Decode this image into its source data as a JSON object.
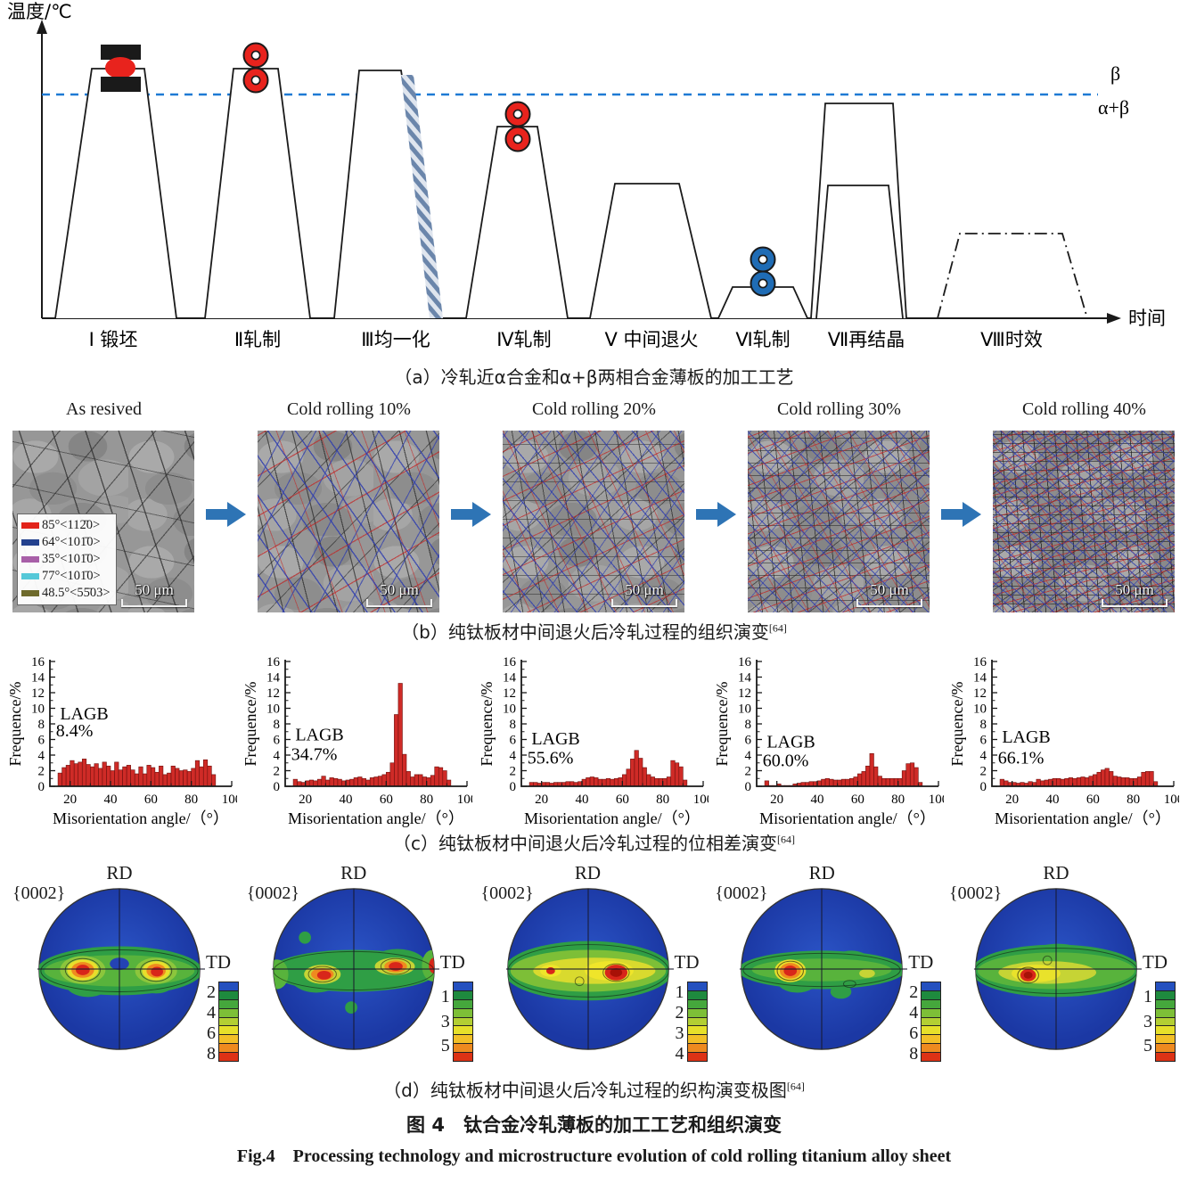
{
  "figure": {
    "title_cn": "图 4　钛合金冷轧薄板的加工工艺和组织演变",
    "title_en": "Fig.4　Processing technology and microstructure evolution of cold rolling titanium alloy sheet"
  },
  "captions": {
    "a": "（a）冷轧近α合金和α+β两相合金薄板的加工工艺",
    "b": "（b）纯钛板材中间退火后冷轧过程的组织演变",
    "c": "（c）纯钛板材中间退火后冷轧过程的位相差演变",
    "d": "（d）纯钛板材中间退火后冷轧过程的织构演变极图",
    "ref": "[64]"
  },
  "panel_a": {
    "y_axis_label": "温度/℃",
    "x_axis_label": "时间",
    "beta_label": "β",
    "alpha_beta_label": "α+β",
    "beta_transus_color": "#1e7ad4",
    "stages": [
      {
        "label": "Ⅰ 锻坯"
      },
      {
        "label": "Ⅱ轧制"
      },
      {
        "label": "Ⅲ均一化"
      },
      {
        "label": "Ⅳ轧制"
      },
      {
        "label": "Ⅴ 中间退火"
      },
      {
        "label": "Ⅵ轧制"
      },
      {
        "label": "Ⅶ再结晶"
      },
      {
        "label": "Ⅷ时效"
      }
    ]
  },
  "panel_b": {
    "titles": [
      "As resived",
      "Cold rolling 10%",
      "Cold rolling 20%",
      "Cold rolling 30%",
      "Cold rolling 40%"
    ],
    "scale_bar": "50 μm",
    "legend": [
      {
        "color": "#e2231a",
        "label": "85°<112̄0>"
      },
      {
        "color": "#23418e",
        "label": "64°<101̄0>"
      },
      {
        "color": "#a85fa8",
        "label": "35°<101̄0>"
      },
      {
        "color": "#55c8d8",
        "label": "77°<101̄0>"
      },
      {
        "color": "#6e6a2b",
        "label": "48.5°<55̄03>"
      }
    ]
  },
  "chart_data": [
    {
      "type": "bar",
      "title": "",
      "ylabel": "Frequence/%",
      "xlabel": "Misorientation angle/（°）",
      "ylim": [
        0,
        16
      ],
      "yticks": [
        0,
        2,
        4,
        6,
        8,
        10,
        12,
        14,
        16
      ],
      "xlim": [
        10,
        100
      ],
      "xticks": [
        20,
        40,
        60,
        80,
        100
      ],
      "bin_start": 14,
      "bin_width": 2,
      "annotation": "LAGB",
      "lagb": "8.4%",
      "ann_y": [
        8.6,
        6.4
      ],
      "bar_color": "#cf2b27",
      "grid": false,
      "values": [
        1.7,
        2.4,
        2.7,
        3.3,
        2.9,
        3.1,
        3.5,
        2.8,
        2.5,
        2.9,
        2.3,
        3.1,
        2.6,
        2.0,
        3.1,
        2.1,
        2.5,
        2.7,
        2.1,
        1.6,
        2.5,
        1.6,
        2.7,
        2.4,
        1.8,
        2.6,
        1.5,
        1.7,
        2.6,
        2.3,
        2.0,
        2.1,
        1.9,
        2.3,
        3.3,
        2.5,
        3.4,
        2.6,
        1.5
      ]
    },
    {
      "type": "bar",
      "title": "",
      "ylabel": "Frequence/%",
      "xlabel": "Misorientation angle/（°）",
      "ylim": [
        0,
        16
      ],
      "yticks": [
        0,
        2,
        4,
        6,
        8,
        10,
        12,
        14,
        16
      ],
      "xlim": [
        10,
        100
      ],
      "xticks": [
        20,
        40,
        60,
        80,
        100
      ],
      "bin_start": 14,
      "bin_width": 2,
      "annotation": "LAGB",
      "lagb": "34.7%",
      "ann_y": [
        5.9,
        3.4
      ],
      "bar_color": "#cf2b27",
      "grid": false,
      "values": [
        0.9,
        0.6,
        0.5,
        0.7,
        0.8,
        0.7,
        0.9,
        1.3,
        0.8,
        1.1,
        1.0,
        0.9,
        0.7,
        0.8,
        0.9,
        1.1,
        1.2,
        1.0,
        0.8,
        1.1,
        1.2,
        1.3,
        1.5,
        1.8,
        3.0,
        9.2,
        13.2,
        4.1,
        1.9,
        1.2,
        1.5,
        1.5,
        1.2,
        1.1,
        1.4,
        2.5,
        2.4,
        2.0,
        0.8
      ]
    },
    {
      "type": "bar",
      "title": "",
      "ylabel": "Frequence/%",
      "xlabel": "Misorientation angle/（°）",
      "ylim": [
        0,
        16
      ],
      "yticks": [
        0,
        2,
        4,
        6,
        8,
        10,
        12,
        14,
        16
      ],
      "xlim": [
        10,
        100
      ],
      "xticks": [
        20,
        40,
        60,
        80,
        100
      ],
      "bin_start": 14,
      "bin_width": 2,
      "annotation": "LAGB",
      "lagb": "55.6%",
      "ann_y": [
        5.4,
        2.9
      ],
      "bar_color": "#cf2b27",
      "grid": false,
      "values": [
        0.5,
        0.5,
        0.4,
        0.5,
        0.5,
        0.4,
        0.5,
        0.5,
        0.5,
        0.6,
        0.6,
        0.5,
        0.6,
        0.9,
        1.1,
        1.2,
        1.1,
        0.9,
        0.9,
        1.0,
        0.9,
        1.0,
        1.1,
        1.5,
        2.2,
        3.5,
        4.6,
        3.6,
        2.4,
        1.5,
        1.2,
        1.0,
        1.0,
        1.0,
        1.2,
        3.3,
        3.0,
        2.5,
        0.8
      ]
    },
    {
      "type": "bar",
      "title": "",
      "ylabel": "Frequence/%",
      "xlabel": "Misorientation angle/（°）",
      "ylim": [
        0,
        16
      ],
      "yticks": [
        0,
        2,
        4,
        6,
        8,
        10,
        12,
        14,
        16
      ],
      "xlim": [
        10,
        100
      ],
      "xticks": [
        20,
        40,
        60,
        80,
        100
      ],
      "bin_start": 14,
      "bin_width": 2,
      "annotation": "LAGB",
      "lagb": "60.0%",
      "ann_y": [
        5.0,
        2.6
      ],
      "bar_color": "#cf2b27",
      "grid": false,
      "values": [
        0.7,
        0.1,
        0.1,
        0.3,
        0.1,
        0.1,
        0.1,
        0.3,
        0.4,
        0.5,
        0.5,
        0.6,
        0.6,
        0.7,
        0.9,
        1.0,
        0.9,
        0.8,
        0.8,
        0.9,
        0.9,
        1.0,
        1.2,
        1.6,
        1.9,
        2.6,
        4.2,
        2.5,
        1.3,
        1.0,
        1.0,
        1.0,
        1.0,
        1.0,
        2.0,
        2.9,
        3.0,
        2.4,
        0.5
      ]
    },
    {
      "type": "bar",
      "title": "",
      "ylabel": "Frequence/%",
      "xlabel": "Misorientation angle/（°）",
      "ylim": [
        0,
        16
      ],
      "yticks": [
        0,
        2,
        4,
        6,
        8,
        10,
        12,
        14,
        16
      ],
      "xlim": [
        10,
        100
      ],
      "xticks": [
        20,
        40,
        60,
        80,
        100
      ],
      "bin_start": 14,
      "bin_width": 2,
      "annotation": "LAGB",
      "lagb": "66.1%",
      "ann_y": [
        5.6,
        2.9
      ],
      "bar_color": "#cf2b27",
      "grid": false,
      "values": [
        0.9,
        0.7,
        0.5,
        0.5,
        0.4,
        0.5,
        0.4,
        0.6,
        0.5,
        0.9,
        0.7,
        0.8,
        0.9,
        1.0,
        1.0,
        0.9,
        1.0,
        1.1,
        1.0,
        1.1,
        1.2,
        1.1,
        1.3,
        1.5,
        1.8,
        2.1,
        2.3,
        1.9,
        1.3,
        1.2,
        1.1,
        1.1,
        1.0,
        1.0,
        1.2,
        1.8,
        1.9,
        1.9,
        0.6
      ]
    }
  ],
  "panel_d": {
    "figures": [
      {
        "plane": "{0002}",
        "rd": "RD",
        "td": "TD",
        "scale_labels": [
          "2",
          "4",
          "6",
          "8"
        ]
      },
      {
        "plane": "{0002}",
        "rd": "RD",
        "td": "TD",
        "scale_labels": [
          "1",
          "3",
          "5"
        ]
      },
      {
        "plane": "{0002}",
        "rd": "RD",
        "td": "TD",
        "scale_labels": [
          "1",
          "2",
          "3",
          "4"
        ]
      },
      {
        "plane": "{0002}",
        "rd": "RD",
        "td": "TD",
        "scale_labels": [
          "2",
          "4",
          "6",
          "8"
        ]
      },
      {
        "plane": "{0002}",
        "rd": "RD",
        "td": "TD",
        "scale_labels": [
          "1",
          "3",
          "5"
        ]
      }
    ]
  }
}
